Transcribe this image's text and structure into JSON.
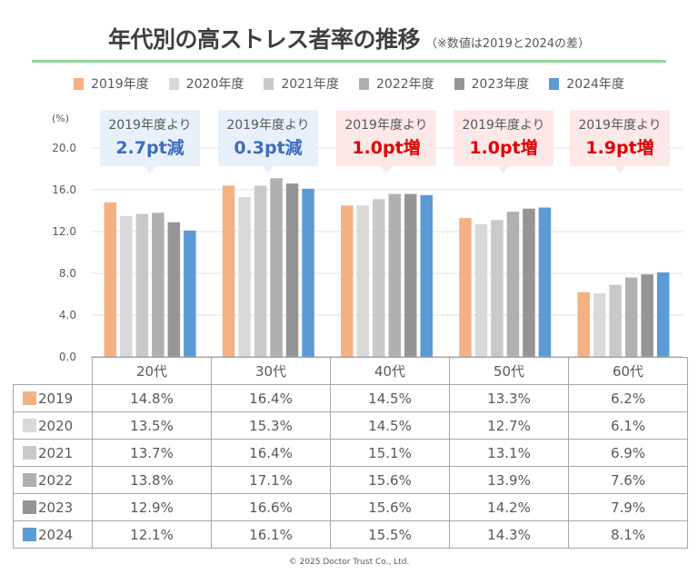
{
  "header": {
    "title": "年代別の高ストレス者率の推移",
    "subtitle": "（※数値は2019と2024の差）"
  },
  "legend": [
    {
      "label": "2019年度",
      "color": "#f4b183"
    },
    {
      "label": "2020年度",
      "color": "#d9d9d9"
    },
    {
      "label": "2021年度",
      "color": "#c9c9c9"
    },
    {
      "label": "2022年度",
      "color": "#b0b0b0"
    },
    {
      "label": "2023年度",
      "color": "#959595"
    },
    {
      "label": "2024年度",
      "color": "#5b9bd5"
    }
  ],
  "callouts": [
    {
      "top": "2019年度より",
      "value": "2.7pt減",
      "kind": "dec"
    },
    {
      "top": "2019年度より",
      "value": "0.3pt減",
      "kind": "dec"
    },
    {
      "top": "2019年度より",
      "value": "1.0pt増",
      "kind": "inc"
    },
    {
      "top": "2019年度より",
      "value": "1.0pt増",
      "kind": "inc"
    },
    {
      "top": "2019年度より",
      "value": "1.9pt増",
      "kind": "inc"
    }
  ],
  "chart_data": {
    "type": "bar",
    "title": "年代別の高ストレス者率の推移",
    "subtitle": "（※数値は2019と2024の差）",
    "unit_label": "(%)",
    "xlabel": "",
    "ylabel": "(%)",
    "ylim": [
      0,
      20
    ],
    "yticks": [
      "0.0",
      "4.0",
      "8.0",
      "12.0",
      "16.0",
      "20.0"
    ],
    "ytick_values": [
      0,
      4,
      8,
      12,
      16,
      20
    ],
    "grid": true,
    "legend_position": "top",
    "categories": [
      "20代",
      "30代",
      "40代",
      "50代",
      "60代"
    ],
    "series": [
      {
        "name": "2019年度",
        "row_label": "2019",
        "color": "#f4b183",
        "values": [
          14.8,
          16.4,
          14.5,
          13.3,
          6.2
        ],
        "display": [
          "14.8%",
          "16.4%",
          "14.5%",
          "13.3%",
          "6.2%"
        ]
      },
      {
        "name": "2020年度",
        "row_label": "2020",
        "color": "#d9d9d9",
        "values": [
          13.5,
          15.3,
          14.5,
          12.7,
          6.1
        ],
        "display": [
          "13.5%",
          "15.3%",
          "14.5%",
          "12.7%",
          "6.1%"
        ]
      },
      {
        "name": "2021年度",
        "row_label": "2021",
        "color": "#c9c9c9",
        "values": [
          13.7,
          16.4,
          15.1,
          13.1,
          6.9
        ],
        "display": [
          "13.7%",
          "16.4%",
          "15.1%",
          "13.1%",
          "6.9%"
        ]
      },
      {
        "name": "2022年度",
        "row_label": "2022",
        "color": "#b0b0b0",
        "values": [
          13.8,
          17.1,
          15.6,
          13.9,
          7.6
        ],
        "display": [
          "13.8%",
          "17.1%",
          "15.6%",
          "13.9%",
          "7.6%"
        ]
      },
      {
        "name": "2023年度",
        "row_label": "2023",
        "color": "#959595",
        "values": [
          12.9,
          16.6,
          15.6,
          14.2,
          7.9
        ],
        "display": [
          "12.9%",
          "16.6%",
          "15.6%",
          "14.2%",
          "7.9%"
        ]
      },
      {
        "name": "2024年度",
        "row_label": "2024",
        "color": "#5b9bd5",
        "values": [
          12.1,
          16.1,
          15.5,
          14.3,
          8.1
        ],
        "display": [
          "12.1%",
          "16.1%",
          "15.5%",
          "14.3%",
          "8.1%"
        ]
      }
    ],
    "annotations": [
      "2019年度より 2.7pt減",
      "2019年度より 0.3pt減",
      "2019年度より 1.0pt増",
      "2019年度より 1.0pt増",
      "2019年度より 1.9pt増"
    ]
  },
  "footer": {
    "copyright": "©  2025 Doctor Trust Co., Ltd."
  }
}
